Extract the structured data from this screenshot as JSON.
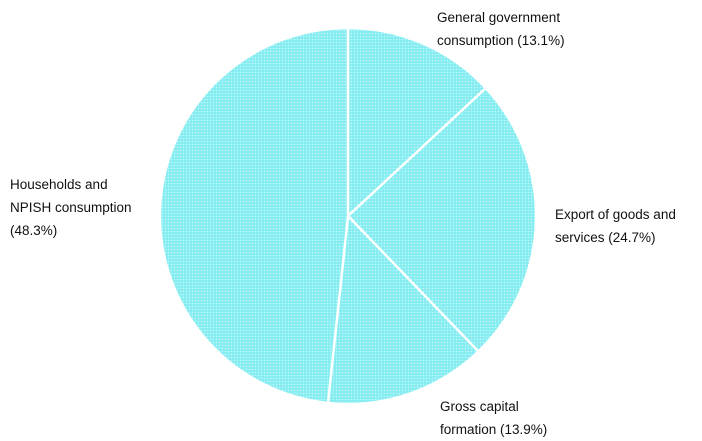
{
  "chart_data": {
    "type": "pie",
    "slices": [
      {
        "name": "General government consumption",
        "value": 13.1,
        "label_lines": [
          "General government",
          "consumption (13.1%)"
        ]
      },
      {
        "name": "Export of goods and services",
        "value": 24.7,
        "label_lines": [
          "Export of goods and",
          "services (24.7%)"
        ]
      },
      {
        "name": "Gross capital formation",
        "value": 13.9,
        "label_lines": [
          "Gross capital",
          "formation (13.9%)"
        ]
      },
      {
        "name": "Households and NPISH consumption",
        "value": 48.3,
        "label_lines": [
          "Households and",
          "NPISH consumption",
          "(48.3%)"
        ]
      }
    ],
    "start_angle": "12 o'clock",
    "direction": "clockwise",
    "fill_color": "#8deff2",
    "border_color": "#ffffff",
    "fill_pattern": "fine dotted",
    "title": "",
    "legend": "none"
  }
}
